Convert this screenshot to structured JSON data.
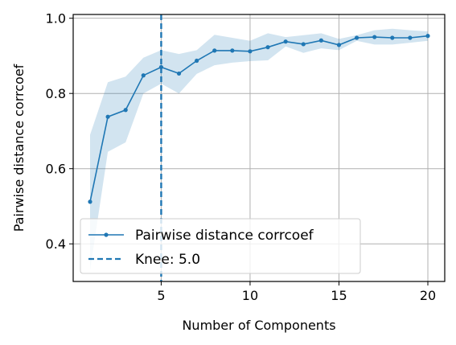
{
  "chart_data": {
    "type": "line",
    "title": "",
    "xlabel": "Number of Components",
    "ylabel": "Pairwise distance corrcoef",
    "xlim": [
      0.05,
      20.95
    ],
    "ylim": [
      0.3,
      1.01
    ],
    "xticks": [
      5,
      10,
      15,
      20
    ],
    "yticks": [
      0.4,
      0.6,
      0.8,
      1.0
    ],
    "xtick_labels": [
      "5",
      "10",
      "15",
      "20"
    ],
    "ytick_labels": [
      "0.4",
      "0.6",
      "0.8",
      "1.0"
    ],
    "grid": true,
    "legend_position": "lower-left",
    "colors": {
      "series": "#1f77b4",
      "band": "#1f77b4",
      "grid": "#b0b0b0"
    },
    "series": [
      {
        "name": "Pairwise distance corrcoef",
        "x": [
          1,
          2,
          3,
          4,
          5,
          6,
          7,
          8,
          9,
          10,
          11,
          12,
          13,
          14,
          15,
          16,
          17,
          18,
          19,
          20
        ],
        "y": [
          0.512,
          0.738,
          0.756,
          0.848,
          0.87,
          0.853,
          0.887,
          0.914,
          0.914,
          0.912,
          0.923,
          0.938,
          0.931,
          0.941,
          0.929,
          0.948,
          0.95,
          0.948,
          0.948,
          0.953
        ],
        "lower": [
          0.33,
          0.645,
          0.67,
          0.8,
          0.826,
          0.8,
          0.852,
          0.875,
          0.882,
          0.886,
          0.888,
          0.925,
          0.908,
          0.92,
          0.915,
          0.94,
          0.93,
          0.93,
          0.935,
          0.94
        ],
        "upper": [
          0.69,
          0.83,
          0.845,
          0.895,
          0.915,
          0.905,
          0.915,
          0.956,
          0.948,
          0.94,
          0.96,
          0.95,
          0.955,
          0.96,
          0.945,
          0.955,
          0.968,
          0.972,
          0.968,
          0.965
        ]
      }
    ],
    "knee": {
      "x": 5.0,
      "label": "Knee: 5.0"
    }
  }
}
